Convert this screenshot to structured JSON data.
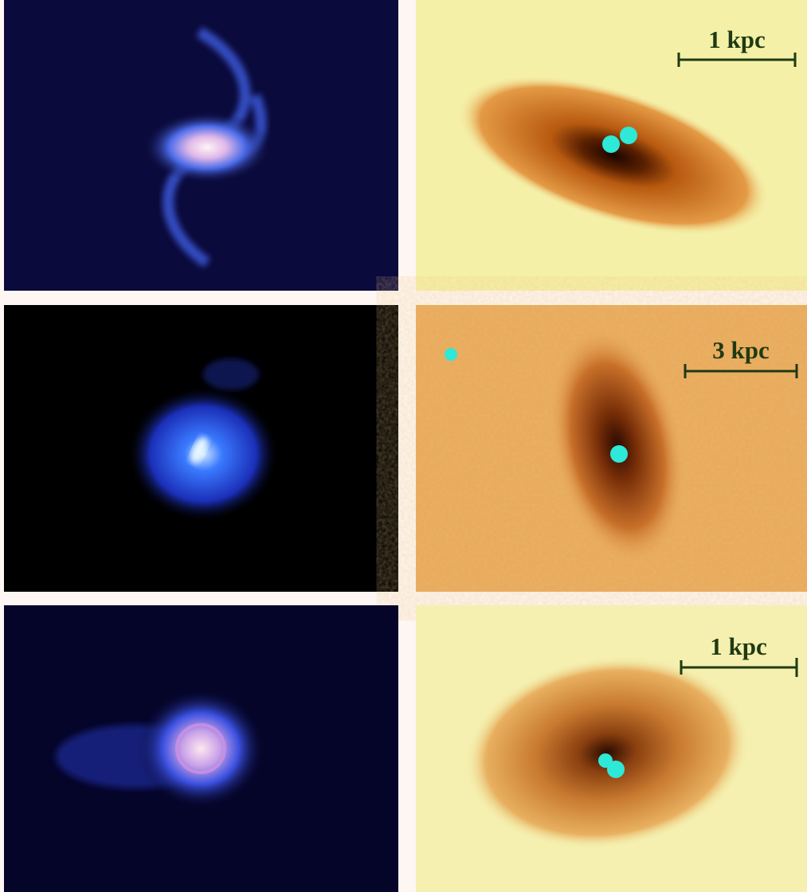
{
  "panels": [
    {
      "scale_label": "1 kpc"
    },
    {
      "scale_label": "3 kpc"
    },
    {
      "scale_label": "1 kpc"
    }
  ]
}
